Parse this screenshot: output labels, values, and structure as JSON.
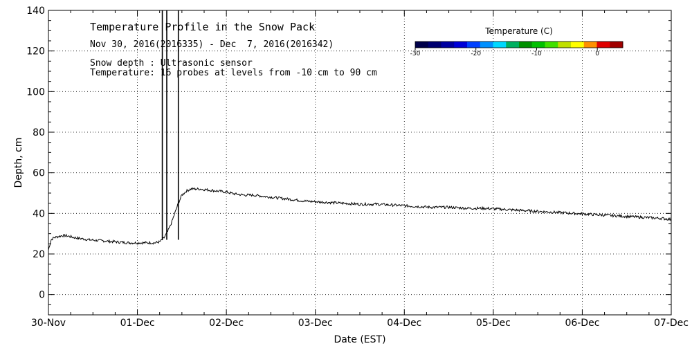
{
  "chart_data": {
    "type": "line",
    "title": "Temperature Profile in the Snow Pack",
    "subtitle": "Nov 30, 2016(2016335) - Dec  7, 2016(2016342)",
    "notes": [
      "Snow depth : Ultrasonic sensor",
      "Temperature: 16 probes at levels from -10 cm to 90 cm"
    ],
    "xlabel": "Date (EST)",
    "ylabel": "Depth, cm",
    "xlim": [
      "30-Nov",
      "07-Dec"
    ],
    "ylim": [
      -10,
      140
    ],
    "x_ticks": [
      "30-Nov",
      "01-Dec",
      "02-Dec",
      "03-Dec",
      "04-Dec",
      "05-Dec",
      "06-Dec",
      "07-Dec"
    ],
    "y_ticks": [
      0,
      20,
      40,
      60,
      80,
      100,
      120,
      140
    ],
    "y_tick_labels": [
      "0",
      "20",
      "40",
      "60",
      "80",
      "100",
      "120",
      "140"
    ],
    "grid": true,
    "series": [
      {
        "x": [
          0,
          0.03,
          0.06,
          0.1,
          0.15,
          0.2,
          0.3,
          0.45,
          0.6,
          0.75,
          0.9,
          1.0,
          1.1,
          1.2,
          1.25,
          1.28,
          1.3,
          1.34,
          1.38,
          1.42,
          1.46,
          1.5,
          1.55,
          1.6,
          1.7,
          1.8,
          1.9,
          2.0,
          2.1,
          2.2,
          2.3,
          2.5,
          2.7,
          2.9,
          3.1,
          3.3,
          3.5,
          3.7,
          3.9,
          4.1,
          4.3,
          4.5,
          4.7,
          4.9,
          5.1,
          5.3,
          5.5,
          5.7,
          5.9,
          6.1,
          6.3,
          6.5,
          6.7,
          6.9,
          7.0
        ],
        "y": [
          22,
          27,
          28,
          28.5,
          29,
          29,
          28,
          27,
          26.5,
          26,
          25.5,
          25.5,
          25.5,
          25.5,
          26,
          27,
          28,
          31,
          35,
          40,
          45,
          49,
          51,
          52,
          52,
          51.5,
          51,
          50.5,
          49.5,
          49,
          49,
          48,
          47,
          46,
          45.5,
          45,
          44.5,
          44.5,
          44,
          43.5,
          43,
          43,
          42.5,
          42.5,
          42,
          41.5,
          41,
          40.5,
          40,
          39.5,
          39,
          38.5,
          38,
          37.5,
          37
        ]
      }
    ],
    "spikes": [
      1.28,
      1.33,
      1.46
    ],
    "colorbar": {
      "title": "Temperature (C)",
      "ticks": [
        "-30",
        "-20",
        "-10",
        "0"
      ],
      "colors": [
        "#00004a",
        "#000070",
        "#0000a0",
        "#0000d8",
        "#0040ff",
        "#0090ff",
        "#00d8ff",
        "#00b060",
        "#009000",
        "#00c000",
        "#40e000",
        "#c0e000",
        "#ffff00",
        "#ff9000",
        "#e00000",
        "#a00000"
      ]
    }
  }
}
